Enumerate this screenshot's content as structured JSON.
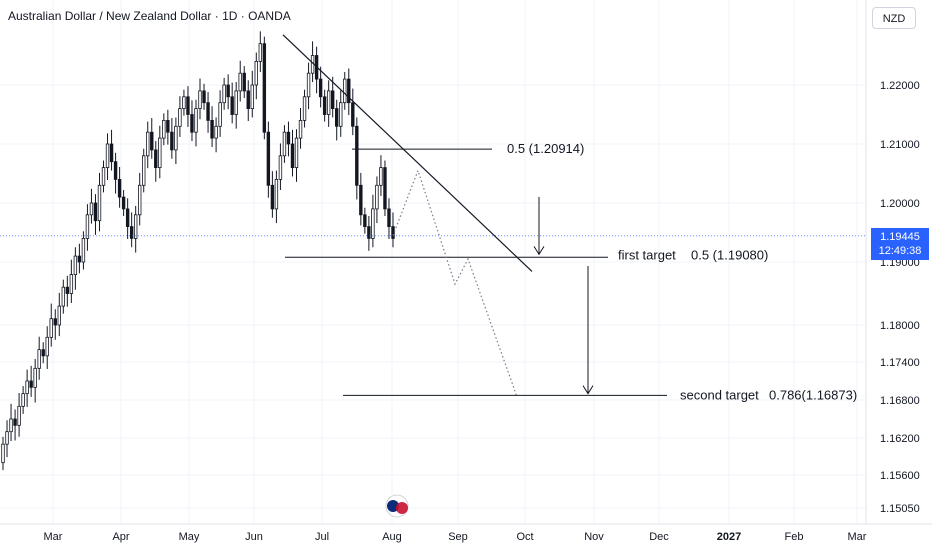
{
  "header": {
    "title": "Australian Dollar / New Zealand Dollar · 1D · OANDA",
    "currency": "NZD"
  },
  "current_price": {
    "value": "1.19445",
    "countdown": "12:49:38",
    "color": "#2962ff"
  },
  "colors": {
    "up": "#131722",
    "down": "#131722",
    "grid": "#f0f3fa",
    "axis_text": "#131722"
  },
  "chart_data": {
    "type": "candlestick",
    "title": "Australian Dollar / New Zealand Dollar · 1D · OANDA",
    "ylim": [
      1.1475,
      1.2295
    ],
    "y_ticks": [
      "1.22000",
      "1.21000",
      "1.20000",
      "1.19000",
      "1.18000",
      "1.17400",
      "1.16800",
      "1.16200",
      "1.15600",
      "1.15050"
    ],
    "x_ticks": [
      "Mar",
      "Apr",
      "May",
      "Jun",
      "Jul",
      "Aug",
      "Sep",
      "Oct",
      "Nov",
      "Dec",
      "2027",
      "Feb",
      "Mar"
    ],
    "series": [
      {
        "close_path": [
          1.161,
          1.163,
          1.165,
          1.164,
          1.167,
          1.169,
          1.171,
          1.17,
          1.173,
          1.176,
          1.175,
          1.178,
          1.181,
          1.18,
          1.183,
          1.186,
          1.185,
          1.188,
          1.191,
          1.19,
          1.194,
          1.198,
          1.2,
          1.197,
          1.203,
          1.206,
          1.21,
          1.207,
          1.204,
          1.201,
          1.199,
          1.196,
          1.194,
          1.198,
          1.203,
          1.208,
          1.212,
          1.209,
          1.206,
          1.211,
          1.214,
          1.212,
          1.209,
          1.213,
          1.216,
          1.218,
          1.215,
          1.212,
          1.216,
          1.219,
          1.217,
          1.214,
          1.211,
          1.213,
          1.217,
          1.22,
          1.218,
          1.215,
          1.219,
          1.222,
          1.219,
          1.216,
          1.22,
          1.224,
          1.227,
          1.212,
          1.203,
          1.199,
          1.204,
          1.208,
          1.212,
          1.21,
          1.206,
          1.211,
          1.214,
          1.218,
          1.222,
          1.225,
          1.221,
          1.218,
          1.215,
          1.219,
          1.216,
          1.213,
          1.217,
          1.221,
          1.217,
          1.213,
          1.203,
          1.198,
          1.196,
          1.194,
          1.199,
          1.203,
          1.206,
          1.199,
          1.196,
          1.194
        ]
      }
    ],
    "annotations": [
      {
        "type": "level",
        "label": "0.5 (1.20914)",
        "y": 1.20914
      },
      {
        "type": "level",
        "label": "first target",
        "value_label": "0.5 (1.19080)",
        "y": 1.1908
      },
      {
        "type": "level",
        "label": "second target",
        "value_label": "0.786(1.16873)",
        "y": 1.16873
      },
      {
        "type": "trendline",
        "from": [
          "May",
          1.227
        ],
        "to": [
          "Sep",
          1.1885
        ]
      },
      {
        "type": "projection",
        "style": "dotted",
        "points": [
          1.1945,
          1.2055,
          1.1865,
          1.1905,
          1.1685
        ]
      },
      {
        "type": "arrow",
        "direction": "down",
        "to": 1.1913
      },
      {
        "type": "arrow",
        "direction": "down",
        "to": 1.169
      }
    ]
  }
}
